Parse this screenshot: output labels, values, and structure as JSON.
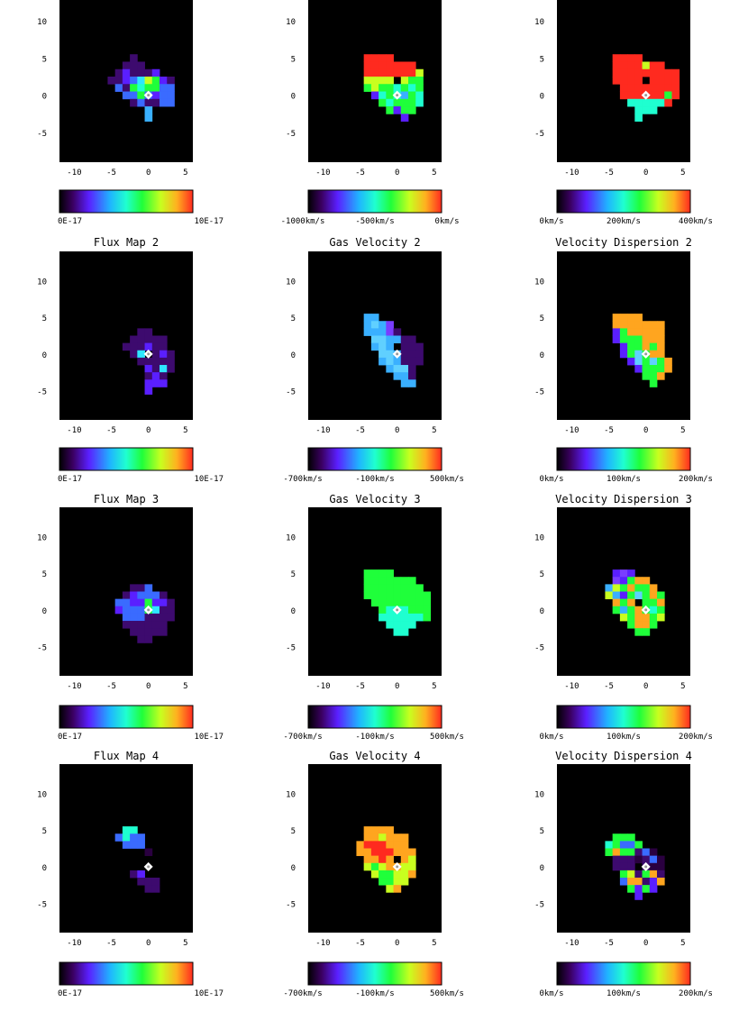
{
  "panels": [
    {
      "title": "",
      "kind": "flux",
      "cbar_labels": [
        "0E-17",
        "10E-17"
      ],
      "axis_x_ticks": [
        "-10",
        "-5",
        "0",
        "5"
      ],
      "axis_y_ticks": [
        "10",
        "5",
        "0",
        "-5"
      ]
    },
    {
      "title": "",
      "kind": "vel1",
      "cbar_labels": [
        "-1000km/s",
        "-500km/s",
        "0km/s"
      ],
      "axis_x_ticks": [
        "-10",
        "-5",
        "0",
        "5"
      ],
      "axis_y_ticks": [
        "10",
        "5",
        "0",
        "-5"
      ]
    },
    {
      "title": "",
      "kind": "disp1",
      "cbar_labels": [
        "0km/s",
        "200km/s",
        "400km/s"
      ],
      "axis_x_ticks": [
        "-10",
        "-5",
        "0",
        "5"
      ],
      "axis_y_ticks": [
        "10",
        "5",
        "0",
        "-5"
      ]
    },
    {
      "title": "Flux Map 2",
      "kind": "flux2",
      "cbar_labels": [
        "0E-17",
        "10E-17"
      ],
      "axis_x_ticks": [
        "-10",
        "-5",
        "0",
        "5"
      ],
      "axis_y_ticks": [
        "10",
        "5",
        "0",
        "-5"
      ]
    },
    {
      "title": "Gas Velocity 2",
      "kind": "vel2",
      "cbar_labels": [
        "-700km/s",
        "-100km/s",
        "500km/s"
      ],
      "axis_x_ticks": [
        "-10",
        "-5",
        "0",
        "5"
      ],
      "axis_y_ticks": [
        "10",
        "5",
        "0",
        "-5"
      ]
    },
    {
      "title": "Velocity Dispersion 2",
      "kind": "disp2",
      "cbar_labels": [
        "0km/s",
        "100km/s",
        "200km/s"
      ],
      "axis_x_ticks": [
        "-10",
        "-5",
        "0",
        "5"
      ],
      "axis_y_ticks": [
        "10",
        "5",
        "0",
        "-5"
      ]
    },
    {
      "title": "Flux Map 3",
      "kind": "flux3",
      "cbar_labels": [
        "0E-17",
        "10E-17"
      ],
      "axis_x_ticks": [
        "-10",
        "-5",
        "0",
        "5"
      ],
      "axis_y_ticks": [
        "10",
        "5",
        "0",
        "-5"
      ]
    },
    {
      "title": "Gas Velocity 3",
      "kind": "vel3",
      "cbar_labels": [
        "-700km/s",
        "-100km/s",
        "500km/s"
      ],
      "axis_x_ticks": [
        "-10",
        "-5",
        "0",
        "5"
      ],
      "axis_y_ticks": [
        "10",
        "5",
        "0",
        "-5"
      ]
    },
    {
      "title": "Velocity Dispersion 3",
      "kind": "disp3",
      "cbar_labels": [
        "0km/s",
        "100km/s",
        "200km/s"
      ],
      "axis_x_ticks": [
        "-10",
        "-5",
        "0",
        "5"
      ],
      "axis_y_ticks": [
        "10",
        "5",
        "0",
        "-5"
      ]
    },
    {
      "title": "Flux Map 4",
      "kind": "flux4",
      "cbar_labels": [
        "0E-17",
        "10E-17"
      ],
      "axis_x_ticks": [
        "-10",
        "-5",
        "0",
        "5"
      ],
      "axis_y_ticks": [
        "10",
        "5",
        "0",
        "-5"
      ]
    },
    {
      "title": "Gas Velocity 4",
      "kind": "vel4",
      "cbar_labels": [
        "-700km/s",
        "-100km/s",
        "500km/s"
      ],
      "axis_x_ticks": [
        "-10",
        "-5",
        "0",
        "5"
      ],
      "axis_y_ticks": [
        "10",
        "5",
        "0",
        "-5"
      ]
    },
    {
      "title": "Velocity Dispersion 4",
      "kind": "disp4",
      "cbar_labels": [
        "0km/s",
        "100km/s",
        "200km/s"
      ],
      "axis_x_ticks": [
        "-10",
        "-5",
        "0",
        "5"
      ],
      "axis_y_ticks": [
        "10",
        "5",
        "0",
        "-5"
      ]
    }
  ],
  "chart_data": {
    "type": "heatmap",
    "layout": "4 rows x 3 columns of spatially resolved maps",
    "xlim": [
      -12,
      6
    ],
    "ylim": [
      -9,
      14
    ],
    "colormap": "rainbow (black-purple-blue-cyan-green-yellow-red)",
    "marker": "white diamond at origin (0,0)",
    "maps": [
      {
        "title": "",
        "colorbar": [
          "0E-17",
          "10E-17"
        ]
      },
      {
        "title": "",
        "colorbar": [
          "-1000km/s",
          "-500km/s",
          "0km/s"
        ]
      },
      {
        "title": "",
        "colorbar": [
          "0km/s",
          "200km/s",
          "400km/s"
        ]
      },
      {
        "title": "Flux Map 2",
        "colorbar": [
          "0E-17",
          "10E-17"
        ]
      },
      {
        "title": "Gas Velocity 2",
        "colorbar": [
          "-700km/s",
          "-100km/s",
          "500km/s"
        ]
      },
      {
        "title": "Velocity Dispersion 2",
        "colorbar": [
          "0km/s",
          "100km/s",
          "200km/s"
        ]
      },
      {
        "title": "Flux Map 3",
        "colorbar": [
          "0E-17",
          "10E-17"
        ]
      },
      {
        "title": "Gas Velocity 3",
        "colorbar": [
          "-700km/s",
          "-100km/s",
          "500km/s"
        ]
      },
      {
        "title": "Velocity Dispersion 3",
        "colorbar": [
          "0km/s",
          "100km/s",
          "200km/s"
        ]
      },
      {
        "title": "Flux Map 4",
        "colorbar": [
          "0E-17",
          "10E-17"
        ]
      },
      {
        "title": "Gas Velocity 4",
        "colorbar": [
          "-700km/s",
          "-100km/s",
          "500km/s"
        ]
      },
      {
        "title": "Velocity Dispersion 4",
        "colorbar": [
          "0km/s",
          "100km/s",
          "200km/s"
        ]
      }
    ]
  }
}
